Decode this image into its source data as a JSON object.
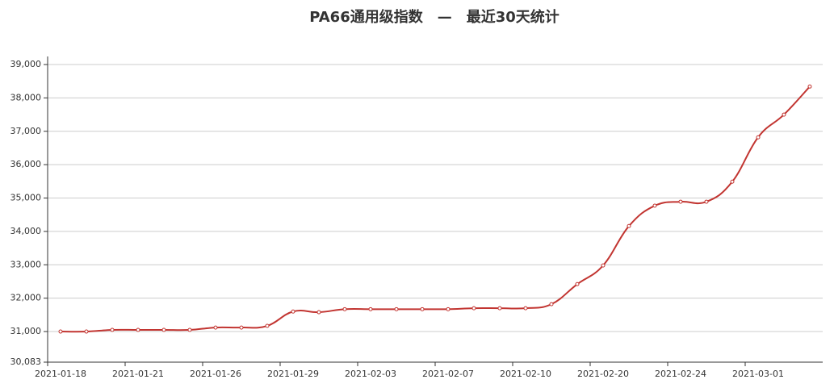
{
  "chart_data": {
    "type": "line",
    "title": "PA66通用级指数　—　最近30天统计",
    "categories": [
      "2021-01-18",
      null,
      null,
      "2021-01-21",
      null,
      null,
      "2021-01-26",
      null,
      null,
      "2021-01-29",
      null,
      null,
      "2021-02-03",
      null,
      null,
      "2021-02-07",
      null,
      null,
      "2021-02-10",
      null,
      null,
      "2021-02-20",
      null,
      null,
      "2021-02-24",
      null,
      null,
      "2021-03-01",
      null,
      null
    ],
    "series": [
      {
        "name": "PA66通用级指数",
        "color": "#c23531",
        "values": [
          31000,
          31000,
          31050,
          31050,
          31050,
          31050,
          31120,
          31120,
          31170,
          31600,
          31580,
          31670,
          31670,
          31670,
          31670,
          31670,
          31700,
          31700,
          31700,
          31820,
          32420,
          32980,
          34160,
          34770,
          34890,
          34890,
          35490,
          36820,
          37500,
          38340
        ]
      }
    ],
    "ylim": [
      30083,
      39000
    ],
    "yticks": [
      {
        "value": 30083,
        "label": "30,083"
      },
      {
        "value": 31000,
        "label": "31,000"
      },
      {
        "value": 32000,
        "label": "32,000"
      },
      {
        "value": 33000,
        "label": "33,000"
      },
      {
        "value": 34000,
        "label": "34,000"
      },
      {
        "value": 35000,
        "label": "35,000"
      },
      {
        "value": 36000,
        "label": "36,000"
      },
      {
        "value": 37000,
        "label": "37,000"
      },
      {
        "value": 38000,
        "label": "38,000"
      },
      {
        "value": 39000,
        "label": "39,000"
      }
    ],
    "grid": true
  }
}
